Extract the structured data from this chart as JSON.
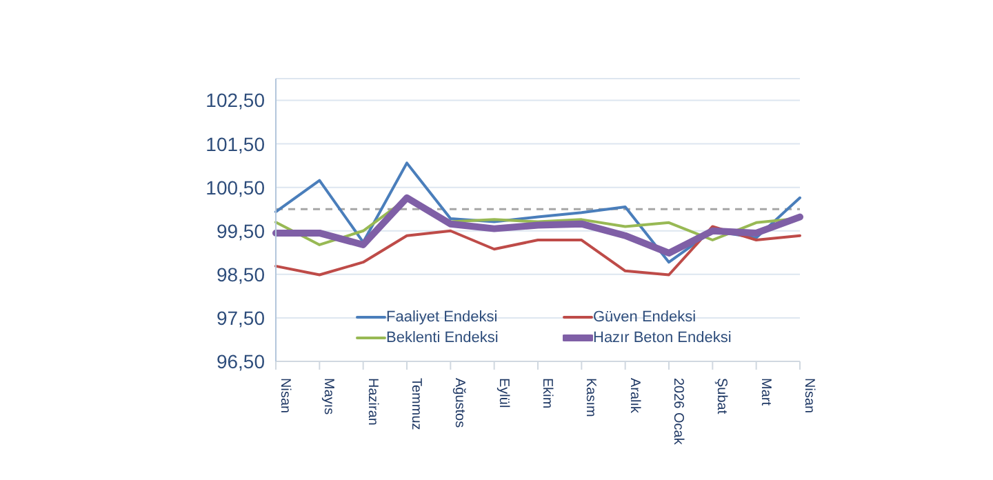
{
  "chart_data": {
    "type": "line",
    "categories": [
      "Nisan",
      "Mayıs",
      "Haziran",
      "Temmuz",
      "Ağustos",
      "Eylül",
      "Ekim",
      "Kasım",
      "Aralık",
      "2026 Ocak",
      "Şubat",
      "Mart",
      "Nisan"
    ],
    "series": [
      {
        "name": "Faaliyet Endeksi",
        "color": "#4a7ebb",
        "values": [
          99.94,
          100.66,
          99.24,
          101.06,
          99.78,
          99.71,
          99.82,
          99.92,
          100.05,
          98.78,
          99.5,
          99.34,
          100.26
        ]
      },
      {
        "name": "Güven Endeksi",
        "color": "#be4b48",
        "values": [
          98.69,
          98.49,
          98.78,
          99.39,
          99.5,
          99.08,
          99.29,
          99.29,
          98.58,
          98.49,
          99.6,
          99.29,
          99.39
        ]
      },
      {
        "name": "Beklenti Endeksi",
        "color": "#98b954",
        "values": [
          99.7,
          99.18,
          99.5,
          100.24,
          99.71,
          99.76,
          99.71,
          99.76,
          99.6,
          99.69,
          99.29,
          99.69,
          99.79
        ]
      },
      {
        "name": "Hazır Beton Endeksi",
        "color": "#7f5fa6",
        "values": [
          99.45,
          99.45,
          99.18,
          100.26,
          99.66,
          99.55,
          99.63,
          99.66,
          99.39,
          98.99,
          99.5,
          99.45,
          99.82
        ]
      }
    ],
    "ylim": [
      96.5,
      103
    ],
    "yticks": [
      {
        "value": 96.5,
        "label": "96,50"
      },
      {
        "value": 97.5,
        "label": "97,50"
      },
      {
        "value": 98.5,
        "label": "98,50"
      },
      {
        "value": 99.5,
        "label": "99,50"
      },
      {
        "value": 100.5,
        "label": "100,50"
      },
      {
        "value": 101.5,
        "label": "101,50"
      },
      {
        "value": 102.5,
        "label": "102,50"
      }
    ],
    "ref_lines": [
      {
        "axis": "y",
        "value": 100,
        "color": "#a6a6a6",
        "line_style": "dashed"
      }
    ],
    "grid": "y",
    "legend": "bottom",
    "marker": "none",
    "line_style": "solid"
  }
}
